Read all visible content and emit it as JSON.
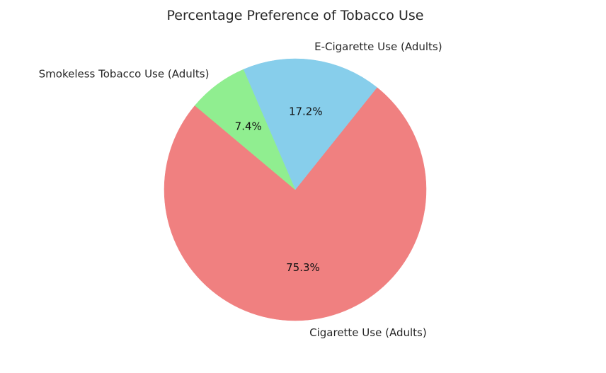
{
  "chart_data": {
    "type": "pie",
    "title": "Percentage Preference of Tobacco Use",
    "start_angle_deg": 140,
    "direction": "counterclockwise",
    "slices": [
      {
        "label": "Cigarette Use (Adults)",
        "value": 75.3,
        "pct_label": "75.3%",
        "color": "#F08080"
      },
      {
        "label": "E-Cigarette Use (Adults)",
        "value": 17.2,
        "pct_label": "17.2%",
        "color": "#87CEEB"
      },
      {
        "label": "Smokeless Tobacco Use (Adults)",
        "value": 7.4,
        "pct_label": "7.4%",
        "color": "#90EE90"
      }
    ],
    "legend": "none"
  }
}
